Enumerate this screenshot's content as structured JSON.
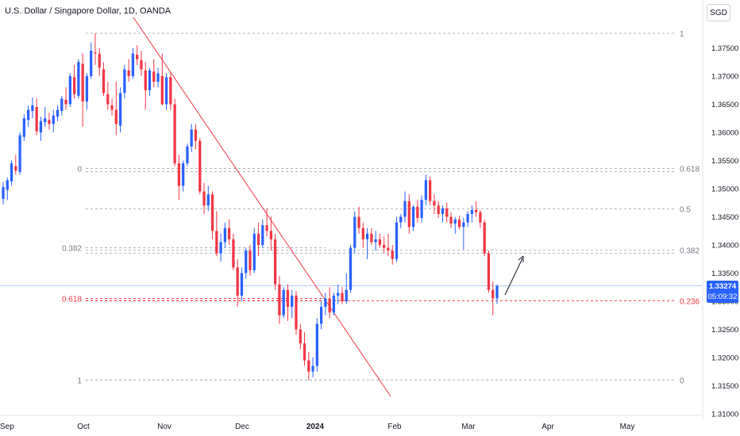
{
  "header": {
    "title": "U.S. Dollar / Singapore Dollar, 1D, OANDA",
    "currency_button": "SGD"
  },
  "price_tag": {
    "price": "1.33274",
    "countdown": "05:09:32"
  },
  "colors": {
    "up": "#2962ff",
    "down": "#f23645",
    "grid_line": "#b2b5be",
    "fib_highlight": "#f23645",
    "trendline": "#f23645"
  },
  "chart_data": {
    "type": "candlestick",
    "symbol": "U.S. Dollar / Singapore Dollar",
    "timeframe": "1D",
    "source": "OANDA",
    "ylim": [
      1.31,
      1.38
    ],
    "y_ticks": [
      "1.37500",
      "1.37000",
      "1.36500",
      "1.36000",
      "1.35500",
      "1.35000",
      "1.34500",
      "1.34000",
      "1.33500",
      "1.33000",
      "1.32500",
      "1.32000",
      "1.31500",
      "1.31000"
    ],
    "x_ticks": [
      "Sep",
      "Oct",
      "Nov",
      "Dec",
      "2024",
      "Feb",
      "Mar",
      "Apr",
      "May"
    ],
    "left_fib_levels": [
      {
        "label": "0",
        "price": 1.3536
      },
      {
        "label": "0.382",
        "price": 1.3395
      },
      {
        "label": "0.618",
        "price": 1.3305,
        "highlight": true
      },
      {
        "label": "1",
        "price": 1.316
      }
    ],
    "right_fib_levels": [
      {
        "label": "1",
        "price": 1.3776
      },
      {
        "label": "0.618",
        "price": 1.3536
      },
      {
        "label": "0.5",
        "price": 1.3464
      },
      {
        "label": "0.382",
        "price": 1.3391
      },
      {
        "label": "0.236",
        "price": 1.3301,
        "highlight": true
      },
      {
        "label": "0",
        "price": 1.316
      }
    ],
    "current_price": 1.33274,
    "candles": [
      [
        1.3482,
        1.3512,
        1.3472,
        1.3503
      ],
      [
        1.3498,
        1.352,
        1.348,
        1.3515
      ],
      [
        1.3513,
        1.355,
        1.3505,
        1.3545
      ],
      [
        1.354,
        1.356,
        1.3525,
        1.3532
      ],
      [
        1.353,
        1.36,
        1.3525,
        1.3595
      ],
      [
        1.3592,
        1.3632,
        1.3585,
        1.3625
      ],
      [
        1.3622,
        1.3648,
        1.361,
        1.364
      ],
      [
        1.3638,
        1.3662,
        1.3625,
        1.3648
      ],
      [
        1.3645,
        1.366,
        1.3595,
        1.3602
      ],
      [
        1.36,
        1.3628,
        1.3585,
        1.362
      ],
      [
        1.3618,
        1.3645,
        1.361,
        1.3625
      ],
      [
        1.3622,
        1.3635,
        1.3605,
        1.3615
      ],
      [
        1.3615,
        1.364,
        1.36,
        1.363
      ],
      [
        1.3628,
        1.3648,
        1.362,
        1.364
      ],
      [
        1.3638,
        1.3665,
        1.363,
        1.366
      ],
      [
        1.3658,
        1.368,
        1.364,
        1.365
      ],
      [
        1.365,
        1.3705,
        1.3645,
        1.37
      ],
      [
        1.3698,
        1.372,
        1.366,
        1.3668
      ],
      [
        1.3665,
        1.373,
        1.366,
        1.3725
      ],
      [
        1.3722,
        1.374,
        1.361,
        1.3655
      ],
      [
        1.3655,
        1.3705,
        1.364,
        1.37
      ],
      [
        1.37,
        1.376,
        1.3695,
        1.3745
      ],
      [
        1.3742,
        1.3776,
        1.372,
        1.374
      ],
      [
        1.374,
        1.375,
        1.37,
        1.3715
      ],
      [
        1.3712,
        1.3725,
        1.3665,
        1.367
      ],
      [
        1.3668,
        1.369,
        1.364,
        1.365
      ],
      [
        1.3648,
        1.366,
        1.363,
        1.364
      ],
      [
        1.364,
        1.369,
        1.3595,
        1.3615
      ],
      [
        1.3612,
        1.368,
        1.36,
        1.367
      ],
      [
        1.367,
        1.372,
        1.366,
        1.3712
      ],
      [
        1.371,
        1.373,
        1.369,
        1.37
      ],
      [
        1.37,
        1.375,
        1.3695,
        1.374
      ],
      [
        1.3738,
        1.3755,
        1.372,
        1.373
      ],
      [
        1.3728,
        1.3745,
        1.37,
        1.3712
      ],
      [
        1.371,
        1.3725,
        1.364,
        1.3675
      ],
      [
        1.3675,
        1.3715,
        1.3665,
        1.371
      ],
      [
        1.3708,
        1.373,
        1.368,
        1.369
      ],
      [
        1.369,
        1.3715,
        1.368,
        1.3705
      ],
      [
        1.37,
        1.374,
        1.3648,
        1.365
      ],
      [
        1.365,
        1.3705,
        1.364,
        1.3698
      ],
      [
        1.3698,
        1.3705,
        1.364,
        1.365
      ],
      [
        1.365,
        1.366,
        1.354,
        1.3545
      ],
      [
        1.3545,
        1.356,
        1.348,
        1.3505
      ],
      [
        1.3505,
        1.355,
        1.3495,
        1.3545
      ],
      [
        1.3545,
        1.358,
        1.354,
        1.3575
      ],
      [
        1.3575,
        1.3615,
        1.3565,
        1.3605
      ],
      [
        1.3605,
        1.3615,
        1.357,
        1.3585
      ],
      [
        1.3585,
        1.359,
        1.349,
        1.3495
      ],
      [
        1.3495,
        1.351,
        1.3455,
        1.347
      ],
      [
        1.347,
        1.3505,
        1.346,
        1.349
      ],
      [
        1.349,
        1.3495,
        1.341,
        1.3425
      ],
      [
        1.3425,
        1.346,
        1.338,
        1.3385
      ],
      [
        1.3385,
        1.342,
        1.337,
        1.3405
      ],
      [
        1.3405,
        1.344,
        1.3395,
        1.343
      ],
      [
        1.343,
        1.3445,
        1.34,
        1.341
      ],
      [
        1.341,
        1.342,
        1.3355,
        1.336
      ],
      [
        1.336,
        1.3375,
        1.329,
        1.331
      ],
      [
        1.331,
        1.336,
        1.33,
        1.335
      ],
      [
        1.335,
        1.3395,
        1.334,
        1.339
      ],
      [
        1.339,
        1.34,
        1.3345,
        1.3355
      ],
      [
        1.3355,
        1.343,
        1.335,
        1.342
      ],
      [
        1.342,
        1.344,
        1.338,
        1.34
      ],
      [
        1.34,
        1.3445,
        1.3395,
        1.3435
      ],
      [
        1.3435,
        1.3465,
        1.3415,
        1.3425
      ],
      [
        1.3425,
        1.345,
        1.339,
        1.341
      ],
      [
        1.341,
        1.342,
        1.332,
        1.333
      ],
      [
        1.333,
        1.3345,
        1.326,
        1.3275
      ],
      [
        1.3275,
        1.3325,
        1.327,
        1.332
      ],
      [
        1.332,
        1.333,
        1.3265,
        1.329
      ],
      [
        1.329,
        1.332,
        1.327,
        1.331
      ],
      [
        1.331,
        1.3318,
        1.324,
        1.325
      ],
      [
        1.325,
        1.326,
        1.3215,
        1.3225
      ],
      [
        1.3225,
        1.3245,
        1.3185,
        1.3195
      ],
      [
        1.3195,
        1.321,
        1.316,
        1.3175
      ],
      [
        1.3175,
        1.32,
        1.3165,
        1.3185
      ],
      [
        1.3185,
        1.327,
        1.3175,
        1.326
      ],
      [
        1.326,
        1.33,
        1.325,
        1.329
      ],
      [
        1.329,
        1.3315,
        1.3275,
        1.3305
      ],
      [
        1.3305,
        1.3325,
        1.327,
        1.328
      ],
      [
        1.328,
        1.3315,
        1.3275,
        1.331
      ],
      [
        1.331,
        1.333,
        1.3295,
        1.3315
      ],
      [
        1.3315,
        1.3325,
        1.3295,
        1.33
      ],
      [
        1.33,
        1.335,
        1.3295,
        1.332
      ],
      [
        1.332,
        1.34,
        1.3315,
        1.3395
      ],
      [
        1.3395,
        1.346,
        1.3385,
        1.345
      ],
      [
        1.345,
        1.3468,
        1.342,
        1.343
      ],
      [
        1.343,
        1.344,
        1.3395,
        1.341
      ],
      [
        1.341,
        1.343,
        1.3375,
        1.342
      ],
      [
        1.342,
        1.343,
        1.34,
        1.3405
      ],
      [
        1.3405,
        1.3425,
        1.339,
        1.341
      ],
      [
        1.341,
        1.342,
        1.3395,
        1.34
      ],
      [
        1.34,
        1.3415,
        1.3385,
        1.3395
      ],
      [
        1.3395,
        1.342,
        1.338,
        1.339
      ],
      [
        1.339,
        1.34,
        1.3365,
        1.3375
      ],
      [
        1.3375,
        1.345,
        1.337,
        1.344
      ],
      [
        1.344,
        1.3455,
        1.343,
        1.345
      ],
      [
        1.345,
        1.3495,
        1.344,
        1.3478
      ],
      [
        1.3478,
        1.349,
        1.342,
        1.3432
      ],
      [
        1.3432,
        1.347,
        1.3425,
        1.3468
      ],
      [
        1.3468,
        1.348,
        1.344,
        1.3448
      ],
      [
        1.3448,
        1.3488,
        1.344,
        1.348
      ],
      [
        1.348,
        1.3525,
        1.347,
        1.3515
      ],
      [
        1.3515,
        1.3522,
        1.347,
        1.3478
      ],
      [
        1.3478,
        1.349,
        1.3455,
        1.347
      ],
      [
        1.347,
        1.3478,
        1.3448,
        1.3455
      ],
      [
        1.3455,
        1.347,
        1.344,
        1.3465
      ],
      [
        1.3465,
        1.3475,
        1.344,
        1.345
      ],
      [
        1.345,
        1.3458,
        1.343,
        1.3438
      ],
      [
        1.3438,
        1.345,
        1.342,
        1.3445
      ],
      [
        1.3445,
        1.3452,
        1.3428,
        1.3432
      ],
      [
        1.3432,
        1.3448,
        1.3392,
        1.344
      ],
      [
        1.344,
        1.346,
        1.3432,
        1.3455
      ],
      [
        1.3455,
        1.347,
        1.344,
        1.3462
      ],
      [
        1.3462,
        1.3478,
        1.345,
        1.3458
      ],
      [
        1.3458,
        1.3462,
        1.343,
        1.344
      ],
      [
        1.344,
        1.3445,
        1.338,
        1.3385
      ],
      [
        1.3385,
        1.339,
        1.3315,
        1.332
      ],
      [
        1.332,
        1.3335,
        1.3275,
        1.3305
      ],
      [
        1.3305,
        1.333,
        1.3295,
        1.33274
      ]
    ]
  }
}
